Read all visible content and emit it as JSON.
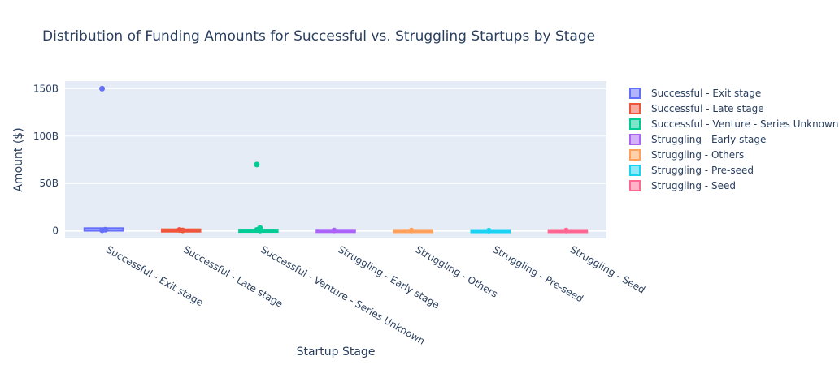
{
  "chart_data": {
    "type": "box",
    "title": "Distribution of Funding Amounts for Successful vs. Struggling Startups by Stage",
    "xlabel": "Startup Stage",
    "ylabel": "Amount ($)",
    "ylim": [
      -8,
      158
    ],
    "y_unit": "B",
    "y_ticks": [
      0,
      50,
      100,
      150
    ],
    "y_tick_labels": [
      "0",
      "50B",
      "100B",
      "150B"
    ],
    "grid": true,
    "legend_position": "right",
    "categories": [
      "Successful - Exit stage",
      "Successful - Late stage",
      "Successful - Venture - Series Unknown",
      "Struggling - Early stage",
      "Struggling - Others",
      "Struggling - Pre-seed",
      "Struggling - Seed"
    ],
    "series": [
      {
        "name": "Successful - Exit stage",
        "color": "#636efa",
        "box": {
          "q1": 0.1,
          "median": 0.5,
          "q3": 2.0,
          "lower": 0,
          "upper": 2.5
        },
        "outliers": [
          150,
          1.2,
          0.6
        ]
      },
      {
        "name": "Successful - Late stage",
        "color": "#ef553b",
        "box": {
          "q1": 0.1,
          "median": 0.3,
          "q3": 0.8,
          "lower": 0,
          "upper": 1.0
        },
        "outliers": [
          1.0,
          0.5
        ]
      },
      {
        "name": "Successful - Venture - Series Unknown",
        "color": "#00cc96",
        "box": {
          "q1": 0.05,
          "median": 0.2,
          "q3": 0.5,
          "lower": 0,
          "upper": 0.8
        },
        "outliers": [
          70,
          3.0,
          1.0,
          0.3
        ]
      },
      {
        "name": "Struggling - Early stage",
        "color": "#ab63fa",
        "box": {
          "q1": 0.05,
          "median": 0.1,
          "q3": 0.3,
          "lower": 0,
          "upper": 0.5
        },
        "outliers": [
          0.4
        ]
      },
      {
        "name": "Struggling - Others",
        "color": "#ffa15a",
        "box": {
          "q1": 0.05,
          "median": 0.1,
          "q3": 0.2,
          "lower": 0,
          "upper": 0.4
        },
        "outliers": [
          0.3
        ]
      },
      {
        "name": "Struggling - Pre-seed",
        "color": "#19d3f3",
        "box": {
          "q1": 0.02,
          "median": 0.05,
          "q3": 0.1,
          "lower": 0,
          "upper": 0.2
        },
        "outliers": [
          0.2
        ]
      },
      {
        "name": "Struggling - Seed",
        "color": "#ff6692",
        "box": {
          "q1": 0.02,
          "median": 0.05,
          "q3": 0.15,
          "lower": 0,
          "upper": 0.3
        },
        "outliers": [
          0.3
        ]
      }
    ]
  }
}
